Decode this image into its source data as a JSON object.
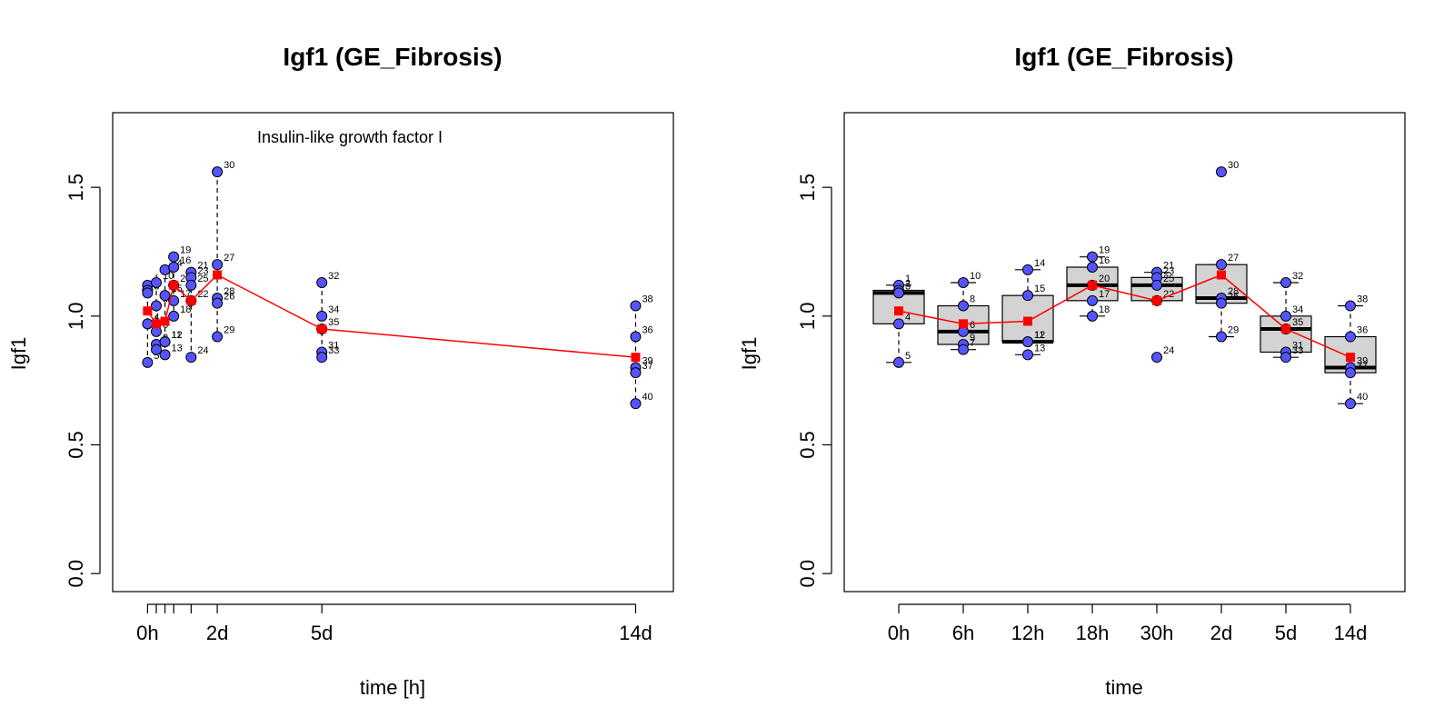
{
  "colors": {
    "point_fill": "#5555ff",
    "mean_color": "#ff0000",
    "box_fill": "#d3d3d3"
  },
  "chart_data": [
    {
      "type": "scatter",
      "title": "Igf1 (GE_Fibrosis)",
      "xlabel": "time [h]",
      "ylabel": "Igf1",
      "annotation": "Insulin-like growth factor I",
      "xlim": [
        -24,
        362
      ],
      "ylim": [
        -0.07,
        1.79
      ],
      "yticks": [
        0.0,
        0.5,
        1.0,
        1.5
      ],
      "ytick_labels": [
        "0.0",
        "0.5",
        "1.0",
        "1.5"
      ],
      "xticks": [
        0,
        6,
        12,
        18,
        30,
        48,
        120,
        336
      ],
      "xtick_labels": [
        {
          "x": 0,
          "label": "0h"
        },
        {
          "x": 48,
          "label": "2d"
        },
        {
          "x": 120,
          "label": "5d"
        },
        {
          "x": 336,
          "label": "14d"
        }
      ],
      "groups": [
        {
          "x": 0,
          "values": [
            1.12,
            1.1,
            1.09,
            0.97,
            0.82
          ],
          "labels": [
            "1",
            "2",
            "3",
            "4",
            "5"
          ],
          "mean": 1.02
        },
        {
          "x": 6,
          "values": [
            1.13,
            1.04,
            0.94,
            0.89,
            0.87
          ],
          "labels": [
            "10",
            "8",
            "6",
            "9",
            "7"
          ],
          "mean": 0.97
        },
        {
          "x": 12,
          "values": [
            1.18,
            1.08,
            0.9,
            0.9,
            0.85
          ],
          "labels": [
            "14",
            "15",
            "11",
            "12",
            "13"
          ],
          "mean": 0.98
        },
        {
          "x": 18,
          "values": [
            1.23,
            1.19,
            1.12,
            1.06,
            1.0
          ],
          "labels": [
            "19",
            "16",
            "20",
            "17",
            "18"
          ],
          "mean": 1.12
        },
        {
          "x": 30,
          "values": [
            1.17,
            1.15,
            1.12,
            1.06,
            0.84
          ],
          "labels": [
            "21",
            "23",
            "25",
            "22",
            "24"
          ],
          "mean": 1.06
        },
        {
          "x": 48,
          "values": [
            1.56,
            1.2,
            1.07,
            1.05,
            0.92
          ],
          "labels": [
            "30",
            "27",
            "28",
            "26",
            "29"
          ],
          "mean": 1.16
        },
        {
          "x": 120,
          "values": [
            1.13,
            1.0,
            0.95,
            0.86,
            0.84
          ],
          "labels": [
            "32",
            "34",
            "35",
            "31",
            "33"
          ],
          "mean": 0.95
        },
        {
          "x": 336,
          "values": [
            1.04,
            0.92,
            0.8,
            0.78,
            0.66
          ],
          "labels": [
            "38",
            "36",
            "39",
            "37",
            "40"
          ],
          "mean": 0.84
        }
      ]
    },
    {
      "type": "box",
      "title": "Igf1 (GE_Fibrosis)",
      "xlabel": "time",
      "ylabel": "Igf1",
      "ylim": [
        -0.07,
        1.79
      ],
      "yticks": [
        0.0,
        0.5,
        1.0,
        1.5
      ],
      "ytick_labels": [
        "0.0",
        "0.5",
        "1.0",
        "1.5"
      ],
      "categories": [
        "0h",
        "6h",
        "12h",
        "18h",
        "30h",
        "2d",
        "5d",
        "14d"
      ],
      "groups": [
        {
          "values": [
            1.12,
            1.1,
            1.09,
            0.97,
            0.82
          ],
          "labels": [
            "1",
            "2",
            "3",
            "4",
            "5"
          ],
          "q1": 0.97,
          "median": 1.09,
          "q3": 1.1,
          "wlo": 0.82,
          "whi": 1.12,
          "mean": 1.02
        },
        {
          "values": [
            1.13,
            1.04,
            0.94,
            0.89,
            0.87
          ],
          "labels": [
            "10",
            "8",
            "6",
            "9",
            "7"
          ],
          "q1": 0.89,
          "median": 0.94,
          "q3": 1.04,
          "wlo": 0.87,
          "whi": 1.13,
          "mean": 0.97
        },
        {
          "values": [
            1.18,
            1.08,
            0.9,
            0.9,
            0.85
          ],
          "labels": [
            "14",
            "15",
            "11",
            "12",
            "13"
          ],
          "q1": 0.9,
          "median": 0.9,
          "q3": 1.08,
          "wlo": 0.85,
          "whi": 1.18,
          "mean": 0.98
        },
        {
          "values": [
            1.23,
            1.19,
            1.12,
            1.06,
            1.0
          ],
          "labels": [
            "19",
            "16",
            "20",
            "17",
            "18"
          ],
          "q1": 1.06,
          "median": 1.12,
          "q3": 1.19,
          "wlo": 1.0,
          "whi": 1.23,
          "mean": 1.12
        },
        {
          "values": [
            1.17,
            1.15,
            1.12,
            1.06,
            0.84
          ],
          "labels": [
            "21",
            "23",
            "25",
            "22",
            "24"
          ],
          "q1": 1.06,
          "median": 1.12,
          "q3": 1.15,
          "wlo": 1.06,
          "whi": 1.17,
          "mean": 1.06
        },
        {
          "values": [
            1.56,
            1.2,
            1.07,
            1.05,
            0.92
          ],
          "labels": [
            "30",
            "27",
            "28",
            "26",
            "29"
          ],
          "q1": 1.05,
          "median": 1.07,
          "q3": 1.2,
          "wlo": 0.92,
          "whi": 1.2,
          "mean": 1.16
        },
        {
          "values": [
            1.13,
            1.0,
            0.95,
            0.86,
            0.84
          ],
          "labels": [
            "32",
            "34",
            "35",
            "31",
            "33"
          ],
          "q1": 0.86,
          "median": 0.95,
          "q3": 1.0,
          "wlo": 0.84,
          "whi": 1.13,
          "mean": 0.95
        },
        {
          "values": [
            1.04,
            0.92,
            0.8,
            0.78,
            0.66
          ],
          "labels": [
            "38",
            "36",
            "39",
            "37",
            "40"
          ],
          "q1": 0.78,
          "median": 0.8,
          "q3": 0.92,
          "wlo": 0.66,
          "whi": 1.04,
          "mean": 0.84
        }
      ]
    }
  ]
}
